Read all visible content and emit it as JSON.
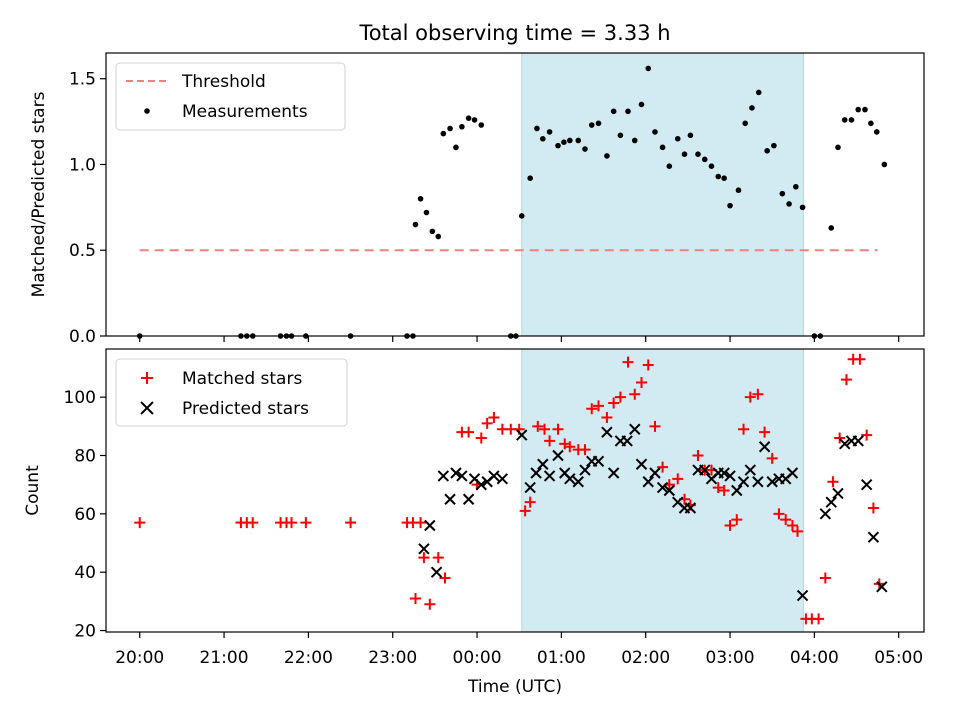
{
  "chart_data": [
    {
      "type": "scatter",
      "title": "Total observing time = 3.33 h",
      "ylabel": "Matched/Predicted stars",
      "xlabel": "",
      "xlim": [
        -4.4,
        5.3
      ],
      "ylim": [
        0.0,
        1.65
      ],
      "yticks": [
        0.0,
        0.5,
        1.0,
        1.5
      ],
      "ytick_labels": [
        "0.0",
        "0.5",
        "1.0",
        "1.5"
      ],
      "grid": false,
      "legend_position": "upper-left",
      "shaded_span": {
        "x0": 0.53,
        "x1": 3.87,
        "color": "#add8e6"
      },
      "threshold": {
        "name": "Threshold",
        "value": 0.5,
        "x0": -4.0,
        "x1": 4.75,
        "color": "#f08080",
        "style": "dashed"
      },
      "series": [
        {
          "name": "Measurements",
          "color": "#000000",
          "marker": "dot",
          "points": [
            [
              -4.0,
              0.0
            ],
            [
              -2.8,
              0.0
            ],
            [
              -2.73,
              0.0
            ],
            [
              -2.66,
              0.0
            ],
            [
              -2.33,
              0.0
            ],
            [
              -2.26,
              0.0
            ],
            [
              -2.2,
              0.0
            ],
            [
              -2.03,
              0.0
            ],
            [
              -1.5,
              0.0
            ],
            [
              -0.83,
              0.0
            ],
            [
              -0.76,
              0.0
            ],
            [
              -0.73,
              0.65
            ],
            [
              -0.67,
              0.8
            ],
            [
              -0.6,
              0.72
            ],
            [
              -0.53,
              0.61
            ],
            [
              -0.46,
              0.58
            ],
            [
              -0.4,
              1.18
            ],
            [
              -0.32,
              1.21
            ],
            [
              -0.25,
              1.1
            ],
            [
              -0.18,
              1.22
            ],
            [
              -0.1,
              1.27
            ],
            [
              -0.03,
              1.26
            ],
            [
              0.05,
              1.23
            ],
            [
              0.4,
              0.0
            ],
            [
              0.46,
              0.0
            ],
            [
              0.53,
              0.7
            ],
            [
              0.63,
              0.92
            ],
            [
              0.71,
              1.21
            ],
            [
              0.78,
              1.15
            ],
            [
              0.86,
              1.19
            ],
            [
              0.96,
              1.11
            ],
            [
              1.03,
              1.13
            ],
            [
              1.1,
              1.14
            ],
            [
              1.2,
              1.14
            ],
            [
              1.28,
              1.09
            ],
            [
              1.36,
              1.23
            ],
            [
              1.44,
              1.24
            ],
            [
              1.54,
              1.05
            ],
            [
              1.62,
              1.31
            ],
            [
              1.7,
              1.17
            ],
            [
              1.79,
              1.31
            ],
            [
              1.87,
              1.14
            ],
            [
              1.95,
              1.35
            ],
            [
              2.03,
              1.56
            ],
            [
              2.11,
              1.19
            ],
            [
              2.2,
              1.1
            ],
            [
              2.28,
              0.99
            ],
            [
              2.38,
              1.15
            ],
            [
              2.46,
              1.06
            ],
            [
              2.53,
              1.17
            ],
            [
              2.62,
              1.06
            ],
            [
              2.7,
              1.03
            ],
            [
              2.78,
              0.99
            ],
            [
              2.86,
              0.93
            ],
            [
              2.93,
              0.92
            ],
            [
              3.0,
              0.76
            ],
            [
              3.1,
              0.85
            ],
            [
              3.18,
              1.24
            ],
            [
              3.26,
              1.33
            ],
            [
              3.34,
              1.42
            ],
            [
              3.44,
              1.08
            ],
            [
              3.52,
              1.11
            ],
            [
              3.62,
              0.83
            ],
            [
              3.7,
              0.77
            ],
            [
              3.78,
              0.87
            ],
            [
              3.86,
              0.75
            ],
            [
              4.0,
              0.0
            ],
            [
              4.07,
              0.0
            ],
            [
              4.2,
              0.63
            ],
            [
              4.28,
              1.1
            ],
            [
              4.36,
              1.26
            ],
            [
              4.44,
              1.26
            ],
            [
              4.52,
              1.32
            ],
            [
              4.6,
              1.32
            ],
            [
              4.67,
              1.24
            ],
            [
              4.74,
              1.19
            ],
            [
              4.83,
              1.0
            ]
          ]
        }
      ]
    },
    {
      "type": "scatter",
      "title": "",
      "ylabel": "Count",
      "xlabel": "Time (UTC)",
      "xlim": [
        -4.4,
        5.3
      ],
      "ylim": [
        19.5,
        116.5
      ],
      "yticks": [
        20,
        40,
        60,
        80,
        100
      ],
      "ytick_labels": [
        "20",
        "40",
        "60",
        "80",
        "100"
      ],
      "xticks": [
        -4,
        -3,
        -2,
        -1,
        0,
        1,
        2,
        3,
        4,
        5
      ],
      "xtick_labels": [
        "20:00",
        "21:00",
        "22:00",
        "23:00",
        "00:00",
        "01:00",
        "02:00",
        "03:00",
        "04:00",
        "05:00"
      ],
      "grid": false,
      "legend_position": "upper-left",
      "shaded_span": {
        "x0": 0.53,
        "x1": 3.87,
        "color": "#add8e6"
      },
      "series": [
        {
          "name": "Matched stars",
          "color": "#ff0000",
          "marker": "plus",
          "points": [
            [
              -4.0,
              57
            ],
            [
              -2.8,
              57
            ],
            [
              -2.73,
              57
            ],
            [
              -2.66,
              57
            ],
            [
              -2.33,
              57
            ],
            [
              -2.26,
              57
            ],
            [
              -2.2,
              57
            ],
            [
              -2.03,
              57
            ],
            [
              -1.5,
              57
            ],
            [
              -0.83,
              57
            ],
            [
              -0.76,
              57
            ],
            [
              -0.67,
              57
            ],
            [
              -0.73,
              31
            ],
            [
              -0.63,
              45
            ],
            [
              -0.56,
              29
            ],
            [
              -0.46,
              45
            ],
            [
              -0.38,
              38
            ],
            [
              -0.18,
              88
            ],
            [
              -0.1,
              88
            ],
            [
              0.0,
              70
            ],
            [
              0.05,
              86
            ],
            [
              0.12,
              91
            ],
            [
              0.2,
              93
            ],
            [
              0.3,
              89
            ],
            [
              0.4,
              89
            ],
            [
              0.5,
              89
            ],
            [
              0.57,
              61
            ],
            [
              0.63,
              64
            ],
            [
              0.72,
              90
            ],
            [
              0.8,
              89
            ],
            [
              0.86,
              85
            ],
            [
              0.96,
              89
            ],
            [
              1.04,
              84
            ],
            [
              1.1,
              83
            ],
            [
              1.2,
              82
            ],
            [
              1.28,
              82
            ],
            [
              1.36,
              96
            ],
            [
              1.44,
              97
            ],
            [
              1.54,
              93
            ],
            [
              1.62,
              98
            ],
            [
              1.7,
              100
            ],
            [
              1.79,
              112
            ],
            [
              1.87,
              101
            ],
            [
              1.95,
              105
            ],
            [
              2.03,
              111
            ],
            [
              2.11,
              90
            ],
            [
              2.2,
              76
            ],
            [
              2.28,
              70
            ],
            [
              2.38,
              72
            ],
            [
              2.46,
              65
            ],
            [
              2.53,
              63
            ],
            [
              2.62,
              80
            ],
            [
              2.7,
              75
            ],
            [
              2.78,
              75
            ],
            [
              2.86,
              69
            ],
            [
              2.93,
              68
            ],
            [
              3.0,
              56
            ],
            [
              3.08,
              58
            ],
            [
              3.16,
              89
            ],
            [
              3.24,
              100
            ],
            [
              3.33,
              101
            ],
            [
              3.41,
              88
            ],
            [
              3.5,
              79
            ],
            [
              3.58,
              60
            ],
            [
              3.66,
              58
            ],
            [
              3.74,
              56
            ],
            [
              3.8,
              54
            ],
            [
              3.9,
              24
            ],
            [
              3.97,
              24
            ],
            [
              4.05,
              24
            ],
            [
              4.13,
              38
            ],
            [
              4.22,
              71
            ],
            [
              4.3,
              86
            ],
            [
              4.38,
              106
            ],
            [
              4.46,
              113
            ],
            [
              4.54,
              113
            ],
            [
              4.62,
              87
            ],
            [
              4.7,
              62
            ],
            [
              4.77,
              36
            ]
          ]
        },
        {
          "name": "Predicted stars",
          "color": "#000000",
          "marker": "cross",
          "points": [
            [
              -0.63,
              48
            ],
            [
              -0.56,
              56
            ],
            [
              -0.48,
              40
            ],
            [
              -0.4,
              73
            ],
            [
              -0.32,
              65
            ],
            [
              -0.25,
              74
            ],
            [
              -0.18,
              73
            ],
            [
              -0.1,
              65
            ],
            [
              -0.03,
              72
            ],
            [
              0.05,
              70
            ],
            [
              0.12,
              71
            ],
            [
              0.2,
              73
            ],
            [
              0.3,
              72
            ],
            [
              0.53,
              87
            ],
            [
              0.63,
              69
            ],
            [
              0.7,
              74
            ],
            [
              0.78,
              77
            ],
            [
              0.86,
              73
            ],
            [
              0.96,
              80
            ],
            [
              1.04,
              74
            ],
            [
              1.1,
              72
            ],
            [
              1.2,
              71
            ],
            [
              1.28,
              75
            ],
            [
              1.36,
              78
            ],
            [
              1.44,
              78
            ],
            [
              1.54,
              88
            ],
            [
              1.62,
              74
            ],
            [
              1.7,
              85
            ],
            [
              1.78,
              85
            ],
            [
              1.87,
              89
            ],
            [
              1.95,
              77
            ],
            [
              2.03,
              71
            ],
            [
              2.11,
              74
            ],
            [
              2.2,
              69
            ],
            [
              2.28,
              68
            ],
            [
              2.38,
              64
            ],
            [
              2.46,
              62
            ],
            [
              2.53,
              62
            ],
            [
              2.62,
              75
            ],
            [
              2.7,
              75
            ],
            [
              2.78,
              72
            ],
            [
              2.86,
              74
            ],
            [
              2.93,
              74
            ],
            [
              3.0,
              73
            ],
            [
              3.08,
              68
            ],
            [
              3.16,
              71
            ],
            [
              3.24,
              75
            ],
            [
              3.33,
              71
            ],
            [
              3.41,
              83
            ],
            [
              3.5,
              71
            ],
            [
              3.58,
              72
            ],
            [
              3.66,
              72
            ],
            [
              3.74,
              74
            ],
            [
              3.86,
              32
            ],
            [
              4.13,
              60
            ],
            [
              4.2,
              64
            ],
            [
              4.28,
              67
            ],
            [
              4.36,
              84
            ],
            [
              4.44,
              85
            ],
            [
              4.52,
              85
            ],
            [
              4.62,
              70
            ],
            [
              4.7,
              52
            ],
            [
              4.8,
              35
            ]
          ]
        }
      ]
    }
  ]
}
